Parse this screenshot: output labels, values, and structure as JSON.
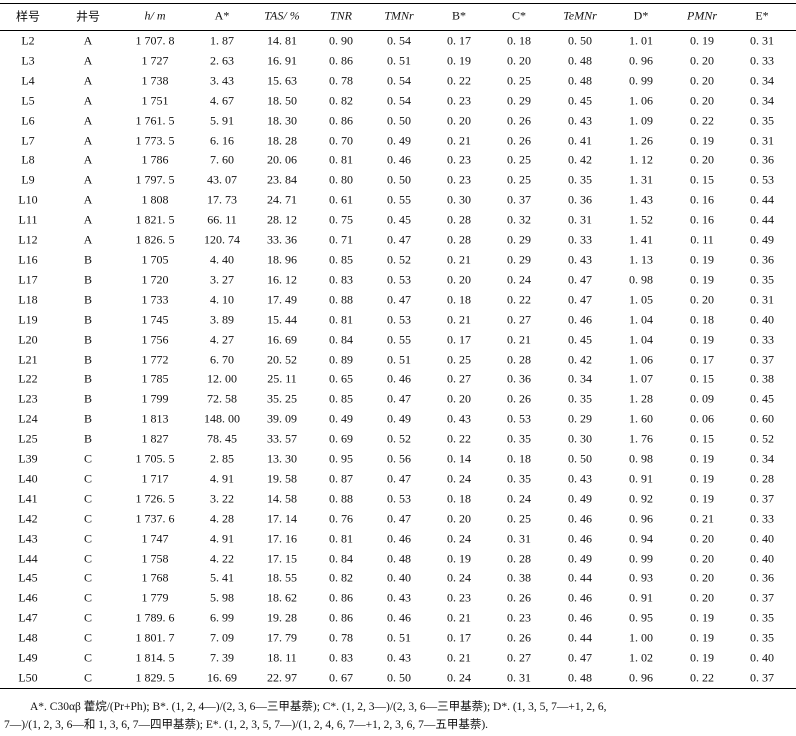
{
  "table": {
    "header": [
      "样号",
      "井号",
      "h/ m",
      "A*",
      "TAS/ %",
      "TNR",
      "TMNr",
      "B*",
      "C*",
      "TeMNr",
      "D*",
      "PMNr",
      "E*"
    ],
    "rows": [
      [
        "L2",
        "A",
        "1 707. 8",
        "1. 87",
        "14. 81",
        "0. 90",
        "0. 54",
        "0. 17",
        "0. 18",
        "0. 50",
        "1. 01",
        "0. 19",
        "0. 31"
      ],
      [
        "L3",
        "A",
        "1 727",
        "2. 63",
        "16. 91",
        "0. 86",
        "0. 51",
        "0. 19",
        "0. 20",
        "0. 48",
        "0. 96",
        "0. 20",
        "0. 33"
      ],
      [
        "L4",
        "A",
        "1 738",
        "3. 43",
        "15. 63",
        "0. 78",
        "0. 54",
        "0. 22",
        "0. 25",
        "0. 48",
        "0. 99",
        "0. 20",
        "0. 34"
      ],
      [
        "L5",
        "A",
        "1 751",
        "4. 67",
        "18. 50",
        "0. 82",
        "0. 54",
        "0. 23",
        "0. 29",
        "0. 45",
        "1. 06",
        "0. 20",
        "0. 34"
      ],
      [
        "L6",
        "A",
        "1 761. 5",
        "5. 91",
        "18. 30",
        "0. 86",
        "0. 50",
        "0. 20",
        "0. 26",
        "0. 43",
        "1. 09",
        "0. 22",
        "0. 35"
      ],
      [
        "L7",
        "A",
        "1 773. 5",
        "6. 16",
        "18. 28",
        "0. 70",
        "0. 49",
        "0. 21",
        "0. 26",
        "0. 41",
        "1. 26",
        "0. 19",
        "0. 31"
      ],
      [
        "L8",
        "A",
        "1 786",
        "7. 60",
        "20. 06",
        "0. 81",
        "0. 46",
        "0. 23",
        "0. 25",
        "0. 42",
        "1. 12",
        "0. 20",
        "0. 36"
      ],
      [
        "L9",
        "A",
        "1 797. 5",
        "43. 07",
        "23. 84",
        "0. 80",
        "0. 50",
        "0. 23",
        "0. 25",
        "0. 35",
        "1. 31",
        "0. 15",
        "0. 53"
      ],
      [
        "L10",
        "A",
        "1 808",
        "17. 73",
        "24. 71",
        "0. 61",
        "0. 55",
        "0. 30",
        "0. 37",
        "0. 36",
        "1. 43",
        "0. 16",
        "0. 44"
      ],
      [
        "L11",
        "A",
        "1 821. 5",
        "66. 11",
        "28. 12",
        "0. 75",
        "0. 45",
        "0. 28",
        "0. 32",
        "0. 31",
        "1. 52",
        "0. 16",
        "0. 44"
      ],
      [
        "L12",
        "A",
        "1 826. 5",
        "120. 74",
        "33. 36",
        "0. 71",
        "0. 47",
        "0. 28",
        "0. 29",
        "0. 33",
        "1. 41",
        "0. 11",
        "0. 49"
      ],
      [
        "L16",
        "B",
        "1 705",
        "4. 40",
        "18. 96",
        "0. 85",
        "0. 52",
        "0. 21",
        "0. 29",
        "0. 43",
        "1. 13",
        "0. 19",
        "0. 36"
      ],
      [
        "L17",
        "B",
        "1 720",
        "3. 27",
        "16. 12",
        "0. 83",
        "0. 53",
        "0. 20",
        "0. 24",
        "0. 47",
        "0. 98",
        "0. 19",
        "0. 35"
      ],
      [
        "L18",
        "B",
        "1 733",
        "4. 10",
        "17. 49",
        "0. 88",
        "0. 47",
        "0. 18",
        "0. 22",
        "0. 47",
        "1. 05",
        "0. 20",
        "0. 31"
      ],
      [
        "L19",
        "B",
        "1 745",
        "3. 89",
        "15. 44",
        "0. 81",
        "0. 53",
        "0. 21",
        "0. 27",
        "0. 46",
        "1. 04",
        "0. 18",
        "0. 40"
      ],
      [
        "L20",
        "B",
        "1 756",
        "4. 27",
        "16. 69",
        "0. 84",
        "0. 55",
        "0. 17",
        "0. 21",
        "0. 45",
        "1. 04",
        "0. 19",
        "0. 33"
      ],
      [
        "L21",
        "B",
        "1 772",
        "6. 70",
        "20. 52",
        "0. 89",
        "0. 51",
        "0. 25",
        "0. 28",
        "0. 42",
        "1. 06",
        "0. 17",
        "0. 37"
      ],
      [
        "L22",
        "B",
        "1 785",
        "12. 00",
        "25. 11",
        "0. 65",
        "0. 46",
        "0. 27",
        "0. 36",
        "0. 34",
        "1. 07",
        "0. 15",
        "0. 38"
      ],
      [
        "L23",
        "B",
        "1 799",
        "72. 58",
        "35. 25",
        "0. 85",
        "0. 47",
        "0. 20",
        "0. 26",
        "0. 35",
        "1. 28",
        "0. 09",
        "0. 45"
      ],
      [
        "L24",
        "B",
        "1 813",
        "148. 00",
        "39. 09",
        "0. 49",
        "0. 49",
        "0. 43",
        "0. 53",
        "0. 29",
        "1. 60",
        "0. 06",
        "0. 60"
      ],
      [
        "L25",
        "B",
        "1 827",
        "78. 45",
        "33. 57",
        "0. 69",
        "0. 52",
        "0. 22",
        "0. 35",
        "0. 30",
        "1. 76",
        "0. 15",
        "0. 52"
      ],
      [
        "L39",
        "C",
        "1 705. 5",
        "2. 85",
        "13. 30",
        "0. 95",
        "0. 56",
        "0. 14",
        "0. 18",
        "0. 50",
        "0. 98",
        "0. 19",
        "0. 34"
      ],
      [
        "L40",
        "C",
        "1 717",
        "4. 91",
        "19. 58",
        "0. 87",
        "0. 47",
        "0. 24",
        "0. 35",
        "0. 43",
        "0. 91",
        "0. 19",
        "0. 28"
      ],
      [
        "L41",
        "C",
        "1 726. 5",
        "3. 22",
        "14. 58",
        "0. 88",
        "0. 53",
        "0. 18",
        "0. 24",
        "0. 49",
        "0. 92",
        "0. 19",
        "0. 37"
      ],
      [
        "L42",
        "C",
        "1 737. 6",
        "4. 28",
        "17. 14",
        "0. 76",
        "0. 47",
        "0. 20",
        "0. 25",
        "0. 46",
        "0. 96",
        "0. 21",
        "0. 33"
      ],
      [
        "L43",
        "C",
        "1 747",
        "4. 91",
        "17. 16",
        "0. 81",
        "0. 46",
        "0. 24",
        "0. 31",
        "0. 46",
        "0. 94",
        "0. 20",
        "0. 40"
      ],
      [
        "L44",
        "C",
        "1 758",
        "4. 22",
        "17. 15",
        "0. 84",
        "0. 48",
        "0. 19",
        "0. 28",
        "0. 49",
        "0. 99",
        "0. 20",
        "0. 40"
      ],
      [
        "L45",
        "C",
        "1 768",
        "5. 41",
        "18. 55",
        "0. 82",
        "0. 40",
        "0. 24",
        "0. 38",
        "0. 44",
        "0. 93",
        "0. 20",
        "0. 36"
      ],
      [
        "L46",
        "C",
        "1 779",
        "5. 98",
        "18. 62",
        "0. 86",
        "0. 43",
        "0. 23",
        "0. 26",
        "0. 46",
        "0. 91",
        "0. 20",
        "0. 37"
      ],
      [
        "L47",
        "C",
        "1 789. 6",
        "6. 99",
        "19. 28",
        "0. 86",
        "0. 46",
        "0. 21",
        "0. 23",
        "0. 46",
        "0. 95",
        "0. 19",
        "0. 35"
      ],
      [
        "L48",
        "C",
        "1 801. 7",
        "7. 09",
        "17. 79",
        "0. 78",
        "0. 51",
        "0. 17",
        "0. 26",
        "0. 44",
        "1. 00",
        "0. 19",
        "0. 35"
      ],
      [
        "L49",
        "C",
        "1 814. 5",
        "7. 39",
        "18. 11",
        "0. 83",
        "0. 43",
        "0. 21",
        "0. 27",
        "0. 47",
        "1. 02",
        "0. 19",
        "0. 40"
      ],
      [
        "L50",
        "C",
        "1 829. 5",
        "16. 69",
        "22. 97",
        "0. 67",
        "0. 50",
        "0. 24",
        "0. 31",
        "0. 48",
        "0. 96",
        "0. 22",
        "0. 37"
      ]
    ],
    "footnote": [
      "A*. C30αβ 藿烷/(Pr+Ph); B*. (1, 2, 4—)/(2, 3, 6—三甲基萘); C*. (1, 2, 3—)/(2, 3, 6—三甲基萘); D*. (1, 3, 5, 7—+1, 2, 6,",
      "7—)/(1, 2, 3, 6—和 1, 3, 6, 7—四甲基萘); E*. (1, 2, 3, 5, 7—)/(1, 2, 4, 6, 7—+1, 2, 3, 6, 7—五甲基萘)."
    ]
  }
}
